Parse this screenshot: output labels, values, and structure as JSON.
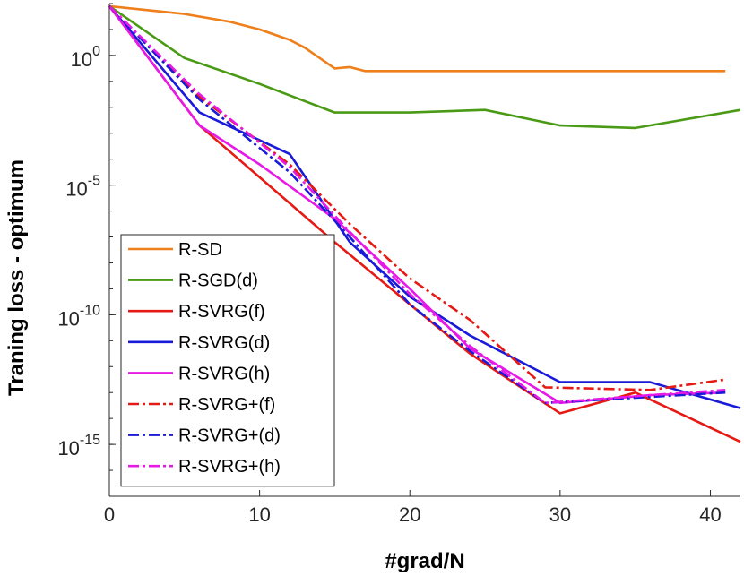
{
  "chart_data": {
    "type": "line",
    "title": "",
    "xlabel": "#grad/N",
    "ylabel": "Traning loss - optimum",
    "xlim": [
      0,
      42
    ],
    "ylim_log10": [
      -17,
      2
    ],
    "yscale": "log",
    "x_ticks": [
      0,
      10,
      20,
      30,
      40
    ],
    "x_tick_labels": [
      "0",
      "10",
      "20",
      "30",
      "40"
    ],
    "y_ticks_log10": [
      0,
      -5,
      -10,
      -15
    ],
    "y_tick_labels": [
      {
        "base": "10",
        "exp": "0"
      },
      {
        "base": "10",
        "exp": "-5"
      },
      {
        "base": "10",
        "exp": "-10"
      },
      {
        "base": "10",
        "exp": "-15"
      }
    ],
    "legend_position": "bottom-left",
    "series": [
      {
        "name": "R-SD",
        "color": "#EE7F1A",
        "dash": "solid",
        "x": [
          0,
          5,
          8,
          10,
          12,
          13,
          14,
          15,
          16,
          17,
          20,
          25,
          30,
          35,
          41
        ],
        "y_log10": [
          1.9,
          1.6,
          1.3,
          1.0,
          0.6,
          0.3,
          -0.1,
          -0.5,
          -0.45,
          -0.6,
          -0.6,
          -0.6,
          -0.6,
          -0.6,
          -0.6
        ]
      },
      {
        "name": "R-SGD(d)",
        "color": "#4A9A16",
        "dash": "solid",
        "x": [
          0,
          5,
          10,
          15,
          20,
          25,
          30,
          35,
          42
        ],
        "y_log10": [
          1.9,
          -0.1,
          -1.1,
          -2.2,
          -2.2,
          -2.1,
          -2.7,
          -2.8,
          -2.1
        ]
      },
      {
        "name": "R-SVRG(f)",
        "color": "#E61A14",
        "dash": "solid",
        "x": [
          0,
          6,
          10,
          15,
          20,
          24,
          30,
          35,
          42
        ],
        "y_log10": [
          1.9,
          -2.7,
          -4.7,
          -7.2,
          -9.6,
          -11.5,
          -13.8,
          -13.0,
          -14.9
        ]
      },
      {
        "name": "R-SVRG(d)",
        "color": "#1A1AD9",
        "dash": "solid",
        "x": [
          0,
          6,
          12,
          16,
          20,
          24,
          30,
          36,
          42
        ],
        "y_log10": [
          1.9,
          -2.2,
          -3.8,
          -7.2,
          -9.3,
          -10.8,
          -12.6,
          -12.6,
          -13.6
        ]
      },
      {
        "name": "R-SVRG(h)",
        "color": "#E619E6",
        "dash": "solid",
        "x": [
          0,
          6,
          10,
          15,
          20,
          24,
          30,
          36,
          41
        ],
        "y_log10": [
          1.9,
          -2.7,
          -4.2,
          -6.3,
          -9.0,
          -11.3,
          -13.4,
          -13.1,
          -13.0
        ]
      },
      {
        "name": "R-SVRG+(f)",
        "color": "#E61A14",
        "dash": "dashdot",
        "x": [
          0,
          6,
          12,
          16,
          20,
          24,
          29,
          36,
          41
        ],
        "y_log10": [
          1.9,
          -1.6,
          -4.2,
          -6.5,
          -8.6,
          -10.2,
          -12.8,
          -12.9,
          -12.5
        ]
      },
      {
        "name": "R-SVRG+(d)",
        "color": "#1A1AD9",
        "dash": "dashdot",
        "x": [
          0,
          6,
          12,
          16,
          20,
          24,
          29,
          35,
          41
        ],
        "y_log10": [
          1.9,
          -1.7,
          -4.5,
          -7.0,
          -9.6,
          -11.4,
          -13.4,
          -13.2,
          -13.0
        ]
      },
      {
        "name": "R-SVRG+(h)",
        "color": "#E619E6",
        "dash": "dashdot",
        "x": [
          0,
          6,
          12,
          16,
          20,
          24,
          29,
          36,
          41
        ],
        "y_log10": [
          1.9,
          -1.5,
          -4.3,
          -6.8,
          -9.2,
          -11.2,
          -13.4,
          -13.1,
          -12.9
        ]
      }
    ]
  }
}
